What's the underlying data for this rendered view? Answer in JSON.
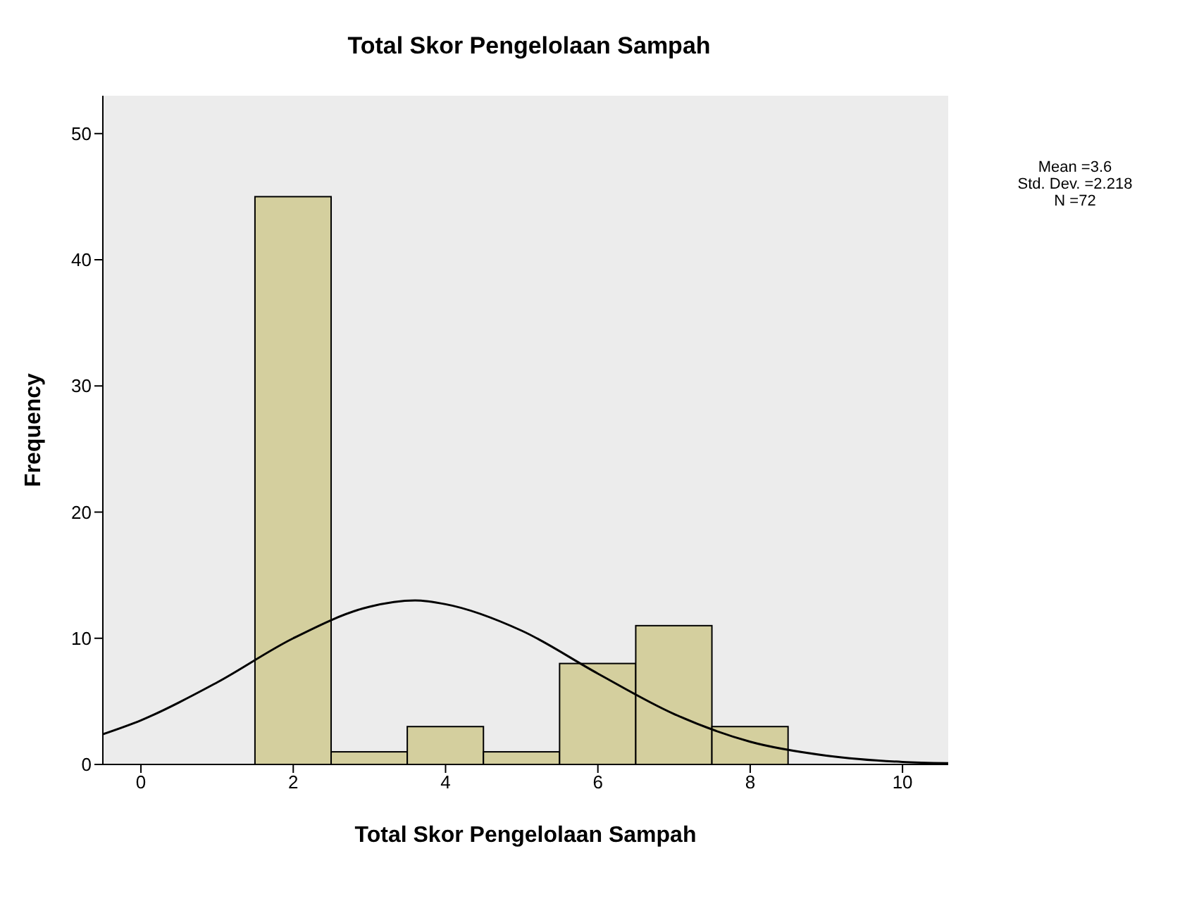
{
  "chart_data": {
    "type": "histogram",
    "title": "Total Skor Pengelolaan Sampah",
    "xlabel": "Total Skor Pengelolaan Sampah",
    "ylabel": "Frequency",
    "annotations": [
      "Mean =3.6",
      "Std. Dev. =2.218",
      "N =72"
    ],
    "bins": [
      1.5,
      2.5,
      3.5,
      4.5,
      5.5,
      6.5,
      7.5,
      8.5
    ],
    "values": [
      45,
      1,
      3,
      1,
      8,
      11,
      3
    ],
    "color": "#d4cf9e",
    "series": [
      {
        "type": "line",
        "color": "#000000",
        "x": [
          -0.5,
          0,
          1,
          2,
          3,
          3.6,
          4,
          5,
          6,
          7,
          8,
          9,
          10,
          10.6
        ],
        "values": [
          2.4,
          3.5,
          6.5,
          10.0,
          12.5,
          13.0,
          12.7,
          10.6,
          7.2,
          4.0,
          1.8,
          0.7,
          0.2,
          0.1
        ]
      }
    ],
    "xlim": [
      -0.5,
      10.6
    ],
    "xticks": [
      0,
      2,
      4,
      6,
      8,
      10
    ],
    "ylim": [
      0,
      53
    ],
    "yticks": [
      0,
      10,
      20,
      30,
      40,
      50
    ]
  }
}
